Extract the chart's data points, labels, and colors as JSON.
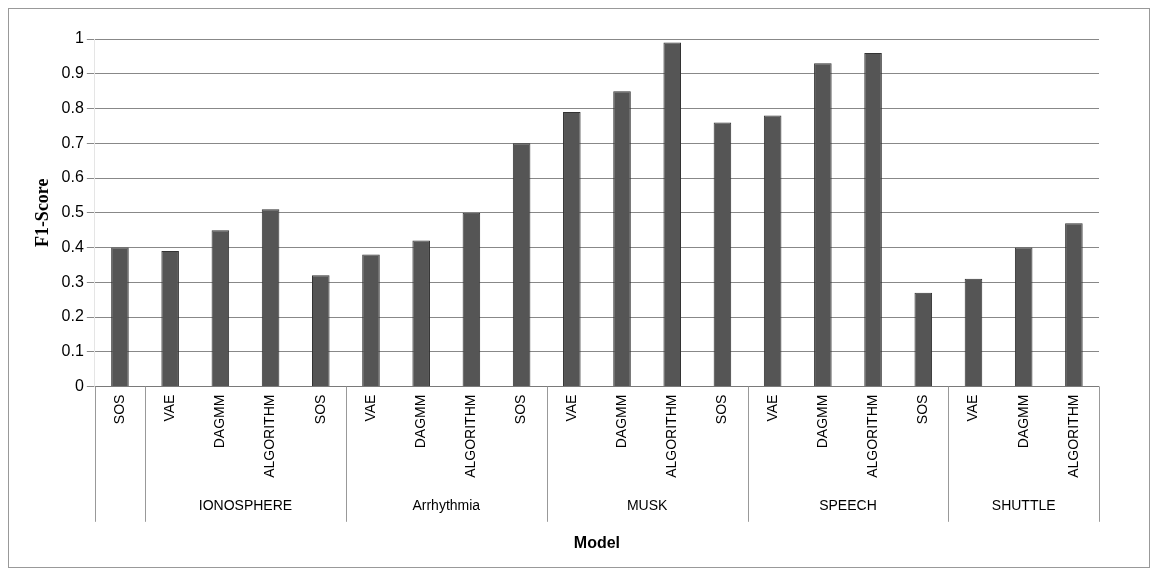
{
  "chart_data": {
    "type": "bar",
    "xlabel": "Model",
    "ylabel": "F1-Score",
    "categories": [
      "SOS",
      "VAE",
      "DAGMM",
      "ALGORITHM",
      "SOS",
      "VAE",
      "DAGMM",
      "ALGORITHM",
      "SOS",
      "VAE",
      "DAGMM",
      "ALGORITHM",
      "SOS",
      "VAE",
      "DAGMM",
      "ALGORITHM",
      "SOS",
      "VAE",
      "DAGMM",
      "ALGORITHM"
    ],
    "values": [
      0.4,
      0.39,
      0.45,
      0.51,
      0.32,
      0.38,
      0.42,
      0.5,
      0.7,
      0.79,
      0.85,
      0.99,
      0.76,
      0.78,
      0.93,
      0.96,
      0.27,
      0.31,
      0.4,
      0.47
    ],
    "color": "#555555",
    "annotations": [
      "IONOSPHERE",
      "Arrhythmia",
      "MUSK",
      "SPEECH",
      "SHUTTLE"
    ],
    "ylim": [
      0,
      1
    ],
    "yticks": [
      0,
      0.1,
      0.2,
      0.3,
      0.4,
      0.5,
      0.6,
      0.7,
      0.8,
      0.9,
      1
    ],
    "grid": "y",
    "legend": false
  }
}
